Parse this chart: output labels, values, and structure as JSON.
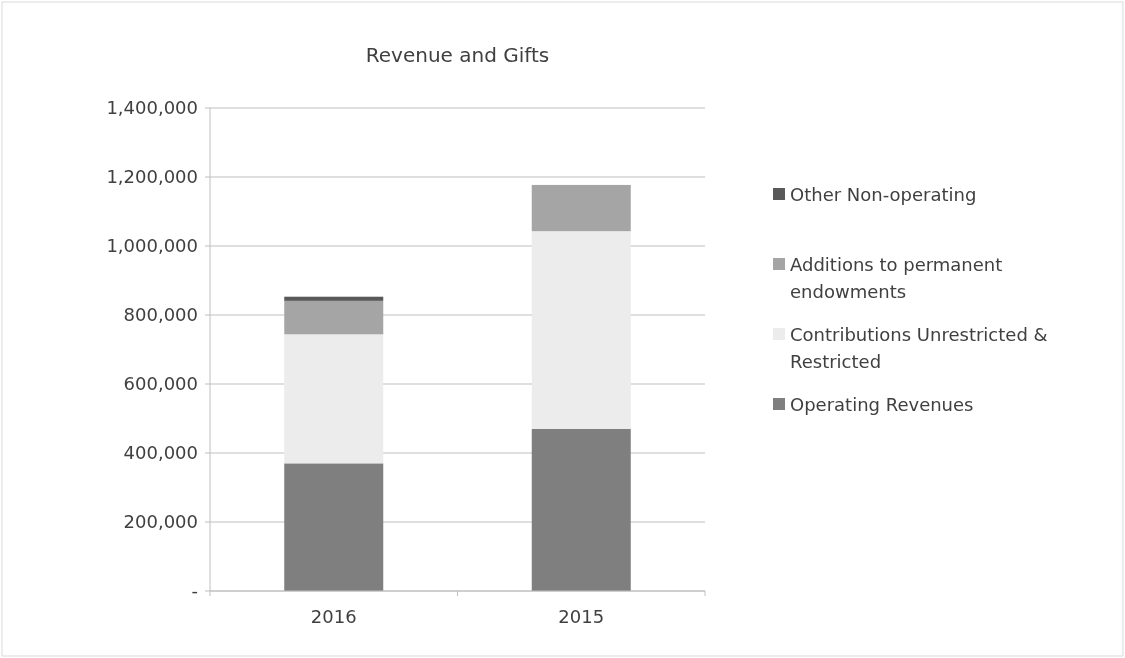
{
  "chart_data": {
    "type": "bar",
    "title": "Revenue and Gifts",
    "categories": [
      "2016",
      "2015"
    ],
    "stacked": true,
    "series": [
      {
        "name": "Operating Revenues",
        "color": "#7f7f7f",
        "values": [
          370000,
          470000
        ]
      },
      {
        "name": "Contributions Unrestricted & Restricted",
        "color": "#ececec",
        "values": [
          374000,
          573000
        ]
      },
      {
        "name": "Additions to permanent endowments",
        "color": "#a5a5a5",
        "values": [
          97000,
          134000
        ]
      },
      {
        "name": "Other Non-operating",
        "color": "#595959",
        "values": [
          12000,
          0
        ]
      }
    ],
    "ylim": [
      0,
      1400000
    ],
    "yticks": [
      {
        "value": 0,
        "label": "-"
      },
      {
        "value": 200000,
        "label": "200,000"
      },
      {
        "value": 400000,
        "label": "400,000"
      },
      {
        "value": 600000,
        "label": "600,000"
      },
      {
        "value": 800000,
        "label": "800,000"
      },
      {
        "value": 1000000,
        "label": "1,000,000"
      },
      {
        "value": 1200000,
        "label": "1,200,000"
      },
      {
        "value": 1400000,
        "label": "1,400,000"
      }
    ],
    "grid": "y",
    "legend": "right"
  }
}
